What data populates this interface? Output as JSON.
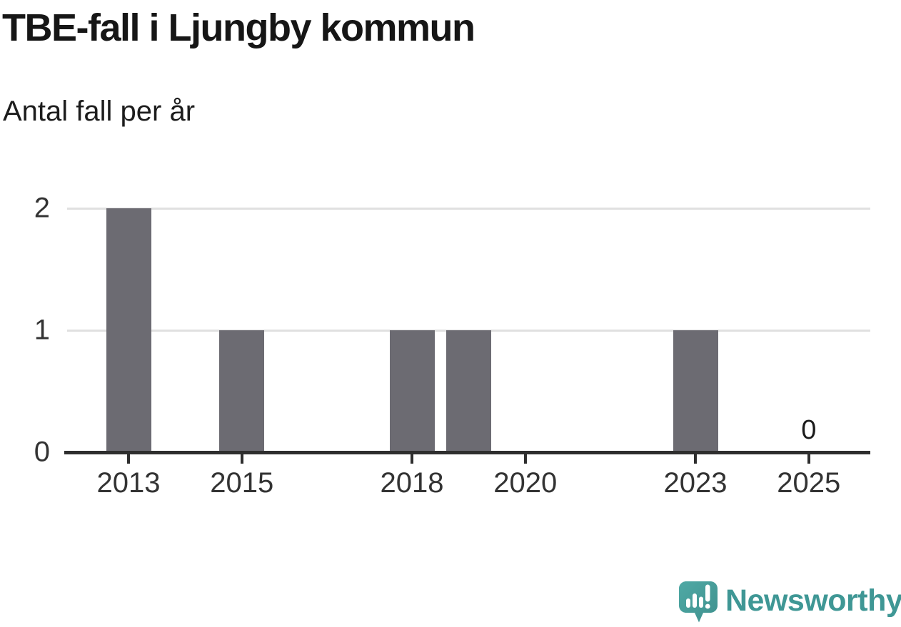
{
  "header": {
    "title": "TBE-fall i Ljungby kommun",
    "subtitle": "Antal fall per år"
  },
  "chart_data": {
    "type": "bar",
    "title": "TBE-fall i Ljungby kommun",
    "subtitle": "Antal fall per år",
    "xlabel": "",
    "ylabel": "Antal fall per år",
    "x": [
      2013,
      2014,
      2015,
      2016,
      2017,
      2018,
      2019,
      2020,
      2021,
      2022,
      2023,
      2024,
      2025
    ],
    "values": [
      2,
      0,
      1,
      0,
      0,
      1,
      1,
      0,
      0,
      0,
      1,
      0,
      0
    ],
    "x_ticks": [
      2013,
      2015,
      2018,
      2020,
      2023,
      2025
    ],
    "y_ticks": [
      0,
      1,
      2
    ],
    "ylim": [
      0,
      2
    ],
    "grid": "horizontal",
    "legend": "none",
    "annotations": [
      {
        "x": 2025,
        "text": "0"
      }
    ]
  },
  "footer": {
    "brand": "Newsworthy"
  },
  "colors": {
    "bar": "#6c6b72",
    "gridline": "#e0e0e0",
    "axis": "#2e2e2e",
    "axis_label": "#333333",
    "value_label": "#1b1b1b",
    "title_text": "#161616",
    "brand_text": "#3f9795",
    "logo_teal_light": "#4fa9a5",
    "logo_teal_dark": "#3f918e"
  }
}
